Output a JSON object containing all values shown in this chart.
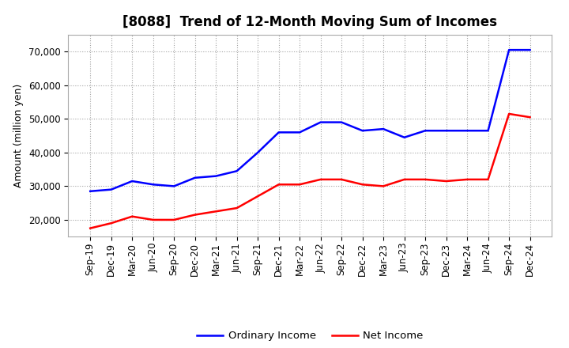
{
  "title": "[8088]  Trend of 12-Month Moving Sum of Incomes",
  "ylabel": "Amount (million yen)",
  "background_color": "#ffffff",
  "grid_color": "#999999",
  "x_labels": [
    "Sep-19",
    "Dec-19",
    "Mar-20",
    "Jun-20",
    "Sep-20",
    "Dec-20",
    "Mar-21",
    "Jun-21",
    "Sep-21",
    "Dec-21",
    "Mar-22",
    "Jun-22",
    "Sep-22",
    "Dec-22",
    "Mar-23",
    "Jun-23",
    "Sep-23",
    "Dec-23",
    "Mar-24",
    "Jun-24",
    "Sep-24",
    "Dec-24"
  ],
  "ordinary_income": [
    28500,
    29000,
    31500,
    30500,
    30000,
    32500,
    33000,
    34500,
    40000,
    46000,
    46000,
    49000,
    49000,
    46500,
    47000,
    44500,
    46500,
    46500,
    46500,
    46500,
    70500,
    70500
  ],
  "net_income": [
    17500,
    19000,
    21000,
    20000,
    20000,
    21500,
    22500,
    23500,
    27000,
    30500,
    30500,
    32000,
    32000,
    30500,
    30000,
    32000,
    32000,
    31500,
    32000,
    32000,
    51500,
    50500
  ],
  "ordinary_income_color": "#0000ff",
  "net_income_color": "#ff0000",
  "ylim": [
    15000,
    75000
  ],
  "yticks": [
    20000,
    30000,
    40000,
    50000,
    60000,
    70000
  ],
  "line_width": 1.8,
  "legend_labels": [
    "Ordinary Income",
    "Net Income"
  ],
  "title_fontsize": 12,
  "axis_label_fontsize": 9,
  "tick_fontsize": 8.5
}
